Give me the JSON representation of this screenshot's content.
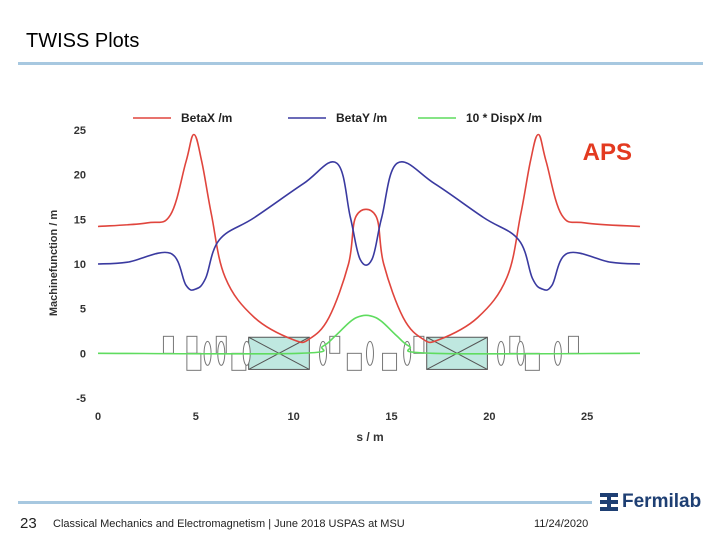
{
  "slide": {
    "title": "TWISS Plots",
    "page_number": "23",
    "footer": "Classical Mechanics and Electromagnetism | June 2018 USPAS at MSU",
    "date": "11/24/2020",
    "logo_text": "Fermilab"
  },
  "colors": {
    "betax": "#e0453d",
    "betay": "#3a3aa0",
    "disp": "#5fdc5f",
    "aps": "#e33a20",
    "rule": "#a7c8e0",
    "logo": "#1e3f73"
  },
  "chart_data": {
    "type": "line",
    "label": "APS",
    "xlabel": "s / m",
    "ylabel": "Machinefunction / m",
    "xlim": [
      0,
      27.7
    ],
    "ylim": [
      -5,
      25
    ],
    "xticks": [
      "0",
      "5",
      "10",
      "15",
      "20",
      "25"
    ],
    "yticks": [
      "25",
      "20",
      "15",
      "10",
      "5",
      "0",
      "-5"
    ],
    "legend_position": "top",
    "grid": false,
    "series": [
      {
        "name": "BetaX /m",
        "x": [
          0,
          2.5,
          3.7,
          4.5,
          4.9,
          5.3,
          5.8,
          6.5,
          8,
          10,
          10.8,
          11.8,
          12.8,
          13.2,
          14.2,
          14.6,
          15.6,
          16.6,
          17.4,
          19.4,
          20.9,
          21.6,
          22.1,
          22.5,
          22.9,
          23.7,
          24.9,
          27.7
        ],
        "y": [
          14.2,
          14.6,
          15.5,
          21.5,
          24.5,
          21.5,
          15.5,
          8.5,
          4,
          1.5,
          1.6,
          4,
          10,
          15.4,
          15.4,
          10,
          4,
          1.6,
          1.5,
          4,
          8.5,
          15.5,
          21.5,
          24.5,
          21.5,
          15.5,
          14.6,
          14.2
        ]
      },
      {
        "name": "BetaY /m",
        "x": [
          0,
          1.5,
          3.7,
          4.5,
          5,
          5.5,
          6.2,
          8,
          10.5,
          12.2,
          12.9,
          13.4,
          14,
          14.5,
          15.3,
          17.2,
          19.7,
          21.5,
          22.2,
          22.7,
          23.2,
          24,
          26.2,
          27.7
        ],
        "y": [
          10,
          10.2,
          11.2,
          7.6,
          7.2,
          8.4,
          12.7,
          15.2,
          19,
          21.3,
          15.2,
          10.5,
          10.5,
          15.2,
          21.3,
          19,
          15.2,
          12.7,
          8.4,
          7.2,
          7.6,
          11.2,
          10.2,
          10
        ]
      },
      {
        "name": "10 * DispX /m",
        "x": [
          0,
          10.3,
          11.5,
          12.2,
          13.2,
          14.2,
          15.2,
          15.9,
          17.1,
          27.7
        ],
        "y": [
          0,
          0,
          0.8,
          2.1,
          4,
          4,
          2.1,
          0.8,
          0,
          0
        ]
      }
    ],
    "lattice": {
      "boxes_above": [
        3.6,
        4.8,
        6.3,
        12.1,
        16.4,
        21.3,
        24.3
      ],
      "boxes_below": [
        4.9,
        7.2,
        13.1,
        14.9,
        22.2
      ],
      "lenses": [
        5.6,
        6.3,
        7.6,
        11.5,
        13.9,
        15.8,
        20.6,
        21.6,
        23.5
      ],
      "large_boxes": [
        [
          7.7,
          10.8
        ],
        [
          16.8,
          19.9
        ]
      ]
    }
  }
}
